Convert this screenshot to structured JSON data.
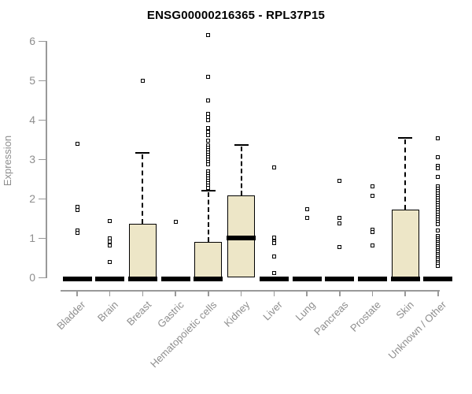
{
  "title": "ENSG00000216365 - RPL37P15",
  "y_axis": {
    "label": "Expression",
    "tick_labels": [
      "0",
      "1",
      "2",
      "3",
      "4",
      "5",
      "6"
    ]
  },
  "colors": {
    "box_fill": "#ede6c7",
    "box_stroke": "#000000",
    "axis_line": "#999999",
    "axis_text": "#8e8e8e",
    "title_text": "#000000",
    "background": "#ffffff"
  },
  "chart_data": {
    "type": "boxplot",
    "title": "ENSG00000216365 - RPL37P15",
    "xlabel": "",
    "ylabel": "Expression",
    "ylim": [
      0,
      6
    ],
    "yticks": [
      0,
      1,
      2,
      3,
      4,
      5,
      6
    ],
    "grid": false,
    "legend": false,
    "categories": [
      "Bladder",
      "Brain",
      "Breast",
      "Gastric",
      "Hematopoietic cells",
      "Kidney",
      "Liver",
      "Lung",
      "Pancreas",
      "Prostate",
      "Skin",
      "Unknown / Other"
    ],
    "series": [
      {
        "category": "Bladder",
        "q1": 0,
        "median": 0,
        "q3": 0,
        "whisker_low": 0,
        "whisker_high": 0,
        "outliers": [
          3.4,
          1.8,
          1.72,
          1.2,
          1.13
        ]
      },
      {
        "category": "Brain",
        "q1": 0,
        "median": 0,
        "q3": 0,
        "whisker_low": 0,
        "whisker_high": 0,
        "outliers": [
          1.43,
          1.0,
          0.92,
          0.82,
          0.4
        ]
      },
      {
        "category": "Breast",
        "q1": 0,
        "median": 0,
        "q3": 1.37,
        "whisker_low": 0,
        "whisker_high": 3.17,
        "outliers": [
          5.0
        ]
      },
      {
        "category": "Gastric",
        "q1": 0,
        "median": 0,
        "q3": 0,
        "whisker_low": 0,
        "whisker_high": 0,
        "outliers": [
          1.42
        ]
      },
      {
        "category": "Hematopoietic cells",
        "q1": 0,
        "median": 0,
        "q3": 0.9,
        "whisker_low": 0,
        "whisker_high": 2.2,
        "outliers": [
          6.15,
          5.1,
          4.5,
          4.15,
          4.07,
          4.0,
          3.8,
          3.7,
          3.62,
          3.48,
          3.36,
          3.3,
          3.24,
          3.18,
          3.12,
          3.06,
          3.0,
          2.94,
          2.88,
          2.7,
          2.64,
          2.58,
          2.52,
          2.46,
          2.4,
          2.34,
          2.28
        ]
      },
      {
        "category": "Kidney",
        "q1": 0,
        "median": 1.0,
        "q3": 2.08,
        "whisker_low": 0,
        "whisker_high": 3.37,
        "outliers": []
      },
      {
        "category": "Liver",
        "q1": 0,
        "median": 0,
        "q3": 0,
        "whisker_low": 0,
        "whisker_high": 0,
        "outliers": [
          2.8,
          1.02,
          0.92,
          0.88,
          0.54,
          0.11
        ]
      },
      {
        "category": "Lung",
        "q1": 0,
        "median": 0,
        "q3": 0,
        "whisker_low": 0,
        "whisker_high": 0,
        "outliers": [
          1.74,
          1.52
        ]
      },
      {
        "category": "Pancreas",
        "q1": 0,
        "median": 0,
        "q3": 0,
        "whisker_low": 0,
        "whisker_high": 0,
        "outliers": [
          2.45,
          1.52,
          1.37,
          0.78
        ]
      },
      {
        "category": "Prostate",
        "q1": 0,
        "median": 0,
        "q3": 0,
        "whisker_low": 0,
        "whisker_high": 0,
        "outliers": [
          2.32,
          2.07,
          1.22,
          1.16,
          0.82
        ]
      },
      {
        "category": "Skin",
        "q1": 0,
        "median": 0,
        "q3": 1.72,
        "whisker_low": 0,
        "whisker_high": 3.55,
        "outliers": []
      },
      {
        "category": "Unknown / Other",
        "q1": 0,
        "median": 0,
        "q3": 0,
        "whisker_low": 0,
        "whisker_high": 0,
        "outliers": [
          3.54,
          3.05,
          2.84,
          2.78,
          2.55,
          2.32,
          2.26,
          2.2,
          2.14,
          2.08,
          2.02,
          1.96,
          1.9,
          1.84,
          1.78,
          1.72,
          1.66,
          1.6,
          1.54,
          1.48,
          1.42,
          1.35,
          1.2,
          1.06,
          1.0,
          0.95,
          0.9,
          0.85,
          0.8,
          0.75,
          0.7,
          0.65,
          0.6,
          0.55,
          0.5,
          0.45,
          0.4,
          0.35,
          0.3
        ]
      }
    ]
  }
}
